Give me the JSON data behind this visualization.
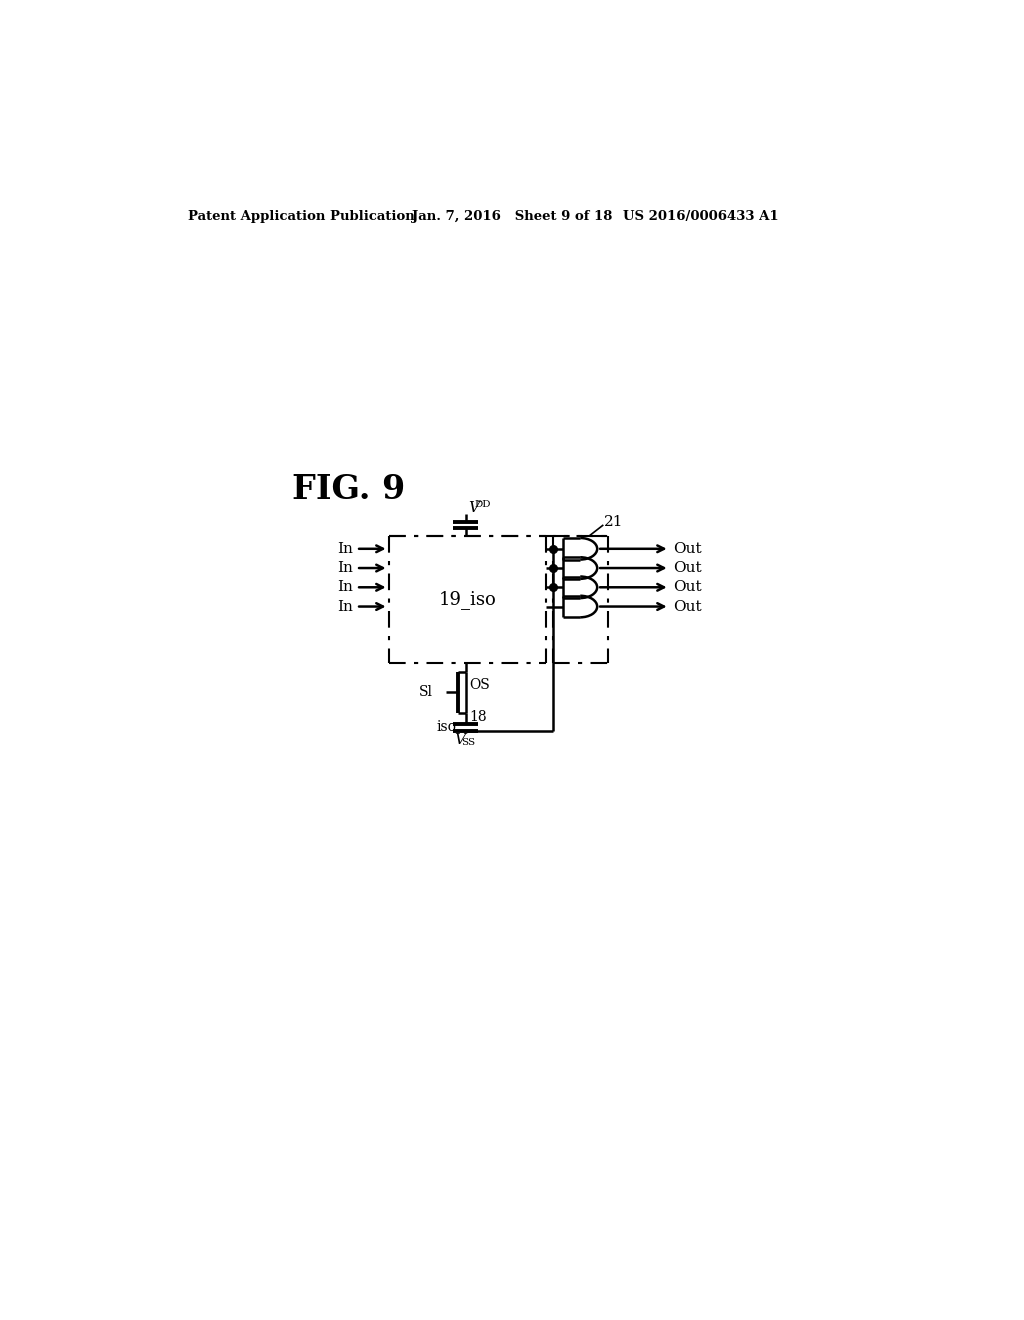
{
  "fig_label": "FIG. 9",
  "header_left": "Patent Application Publication",
  "header_mid": "Jan. 7, 2016   Sheet 9 of 18",
  "header_right": "US 2016/0006433 A1",
  "bg_color": "#ffffff",
  "line_color": "#000000",
  "font_color": "#000000",
  "block_19_label": "19_iso",
  "num_21": "21",
  "iso_label": "iso",
  "sl_label": "Sl",
  "os_label": "OS",
  "num_18": "18",
  "in_labels": [
    "In",
    "In",
    "In",
    "In"
  ],
  "out_labels": [
    "Out",
    "Out",
    "Out",
    "Out"
  ]
}
